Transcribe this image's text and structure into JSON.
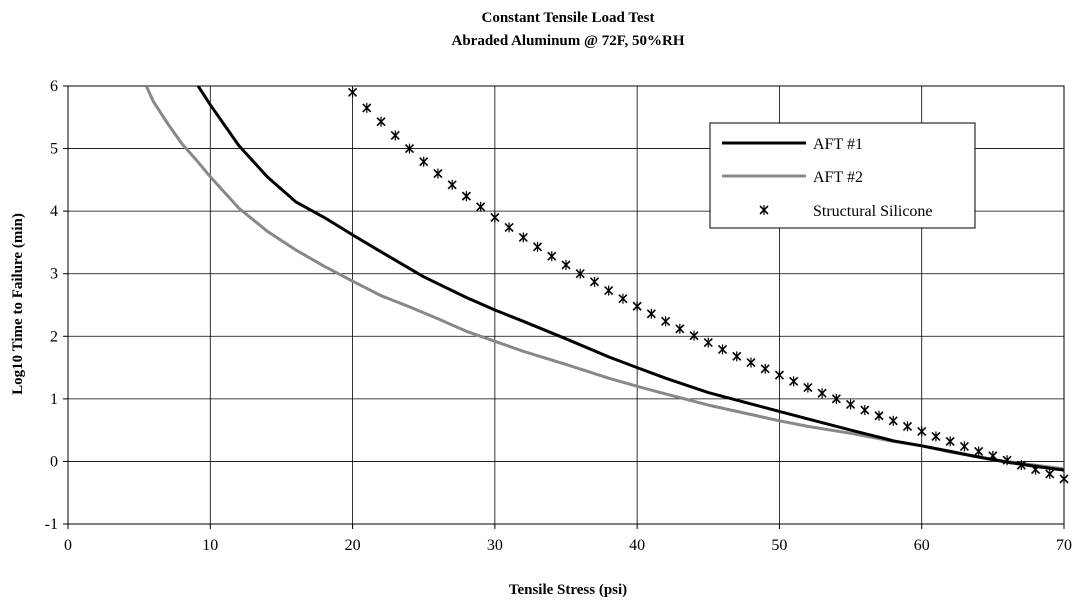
{
  "chart_data": {
    "type": "line",
    "title": "Constant Tensile Load Test",
    "subtitle": "Abraded Aluminum @ 72F, 50%RH",
    "xlabel": "Tensile Stress (psi)",
    "ylabel": "Log10 Time to Failure (min)",
    "xlim": [
      0,
      70
    ],
    "ylim": [
      -1,
      6
    ],
    "xticks": [
      0,
      10,
      20,
      30,
      40,
      50,
      60,
      70
    ],
    "yticks": [
      -1,
      0,
      1,
      2,
      3,
      4,
      5,
      6
    ],
    "grid": true,
    "legend_position": "top-right",
    "series": [
      {
        "name": "AFT #1",
        "style": "line",
        "color": "#000000",
        "x": [
          9,
          10,
          12,
          14,
          16,
          18,
          20,
          22,
          25,
          28,
          30,
          32,
          35,
          38,
          40,
          42,
          45,
          48,
          50,
          52,
          55,
          58,
          60,
          62,
          64,
          66,
          68,
          70
        ],
        "y": [
          6.05,
          5.7,
          5.05,
          4.55,
          4.15,
          3.9,
          3.62,
          3.35,
          2.95,
          2.62,
          2.42,
          2.24,
          1.96,
          1.67,
          1.5,
          1.33,
          1.1,
          0.92,
          0.8,
          0.68,
          0.5,
          0.33,
          0.25,
          0.16,
          0.07,
          -0.01,
          -0.08,
          -0.14
        ]
      },
      {
        "name": "AFT #2",
        "style": "line",
        "color": "#888888",
        "x": [
          5.5,
          6,
          7,
          8,
          9,
          10,
          11,
          12,
          14,
          16,
          18,
          20,
          22,
          24,
          26,
          28,
          30,
          32,
          35,
          38,
          40,
          42,
          45,
          48,
          50,
          52,
          55,
          58,
          60,
          62,
          65,
          68,
          70
        ],
        "y": [
          6.0,
          5.75,
          5.4,
          5.08,
          4.82,
          4.55,
          4.3,
          4.05,
          3.68,
          3.38,
          3.12,
          2.88,
          2.65,
          2.47,
          2.28,
          2.08,
          1.92,
          1.76,
          1.55,
          1.33,
          1.2,
          1.08,
          0.9,
          0.75,
          0.65,
          0.56,
          0.45,
          0.32,
          0.25,
          0.15,
          0.03,
          -0.06,
          -0.12
        ]
      },
      {
        "name": "Structural Silicone",
        "style": "marker",
        "color": "#000000",
        "x": [
          20,
          21,
          22,
          23,
          24,
          25,
          26,
          27,
          28,
          29,
          30,
          31,
          32,
          33,
          34,
          35,
          36,
          37,
          38,
          39,
          40,
          41,
          42,
          43,
          44,
          45,
          46,
          47,
          48,
          49,
          50,
          51,
          52,
          53,
          54,
          55,
          56,
          57,
          58,
          59,
          60,
          61,
          62,
          63,
          64,
          65,
          66,
          67,
          68,
          69,
          70
        ],
        "y": [
          5.9,
          5.65,
          5.43,
          5.21,
          5.0,
          4.79,
          4.6,
          4.42,
          4.24,
          4.07,
          3.9,
          3.74,
          3.58,
          3.43,
          3.28,
          3.14,
          3.0,
          2.87,
          2.73,
          2.6,
          2.48,
          2.36,
          2.24,
          2.12,
          2.01,
          1.9,
          1.79,
          1.68,
          1.58,
          1.48,
          1.38,
          1.28,
          1.18,
          1.09,
          1.0,
          0.91,
          0.82,
          0.73,
          0.65,
          0.56,
          0.48,
          0.4,
          0.32,
          0.24,
          0.16,
          0.09,
          0.02,
          -0.06,
          -0.13,
          -0.2,
          -0.28
        ]
      }
    ]
  }
}
